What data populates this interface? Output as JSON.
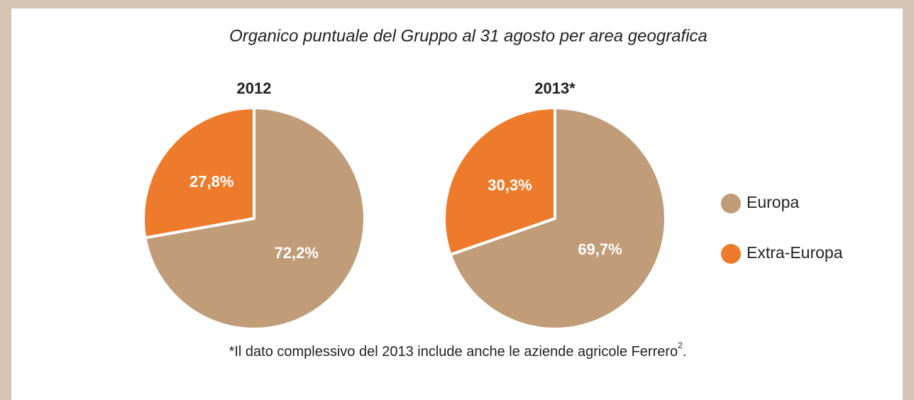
{
  "title": "Organico puntuale del Gruppo al 31 agosto per area geografica",
  "footnote": {
    "text": "*Il dato complessivo del 2013 include anche le aziende agricole Ferrero",
    "ref": "2",
    "end": "."
  },
  "chart_data": [
    {
      "type": "pie",
      "title": "2012",
      "categories": [
        "Europa",
        "Extra-Europa"
      ],
      "values": [
        72.2,
        27.8
      ],
      "value_labels": [
        "72,2%",
        "27,8%"
      ],
      "colors": [
        "#c19c78",
        "#ee7b2c"
      ]
    },
    {
      "type": "pie",
      "title": "2013*",
      "categories": [
        "Europa",
        "Extra-Europa"
      ],
      "values": [
        69.7,
        30.3
      ],
      "value_labels": [
        "69,7%",
        "30,3%"
      ],
      "colors": [
        "#c19c78",
        "#ee7b2c"
      ]
    }
  ]
}
